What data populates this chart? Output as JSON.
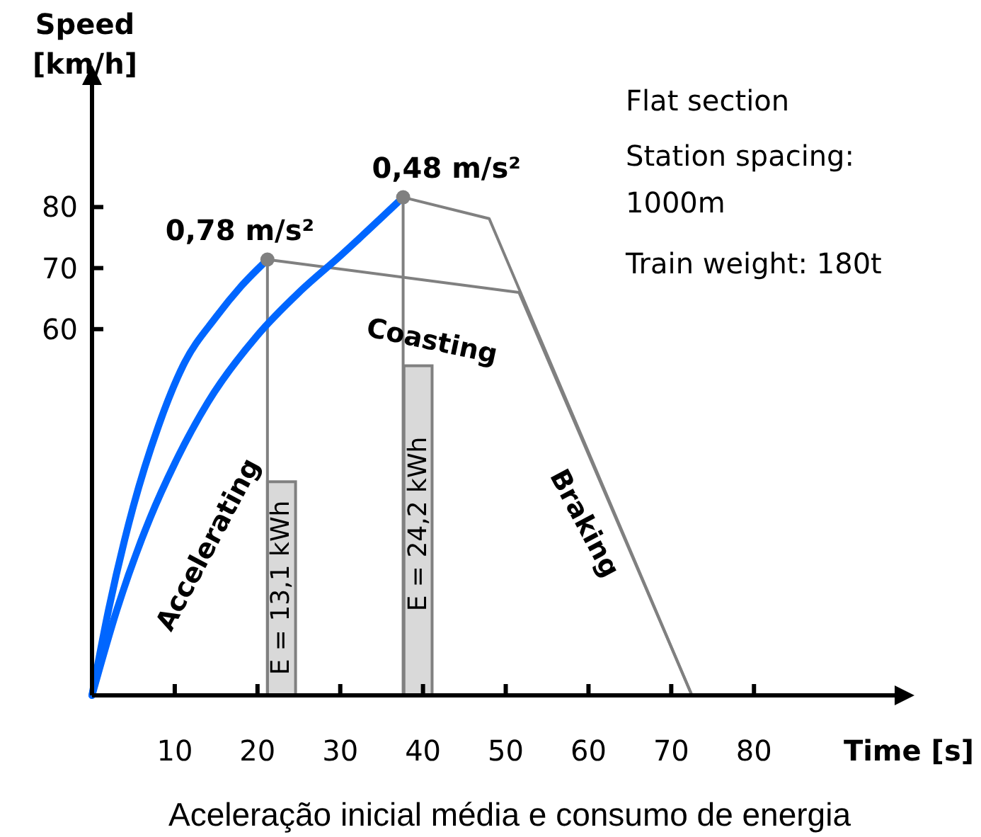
{
  "chart_data": {
    "type": "line",
    "xlabel": "Time [s]",
    "ylabel": "Speed [km/h]",
    "xlim": [
      0,
      97
    ],
    "ylim": [
      0,
      100
    ],
    "xticks": [
      10,
      20,
      30,
      40,
      50,
      60,
      70,
      80
    ],
    "yticks": [
      60,
      70,
      80
    ],
    "grid": false,
    "marker": "none",
    "series": [
      {
        "type": "bar",
        "color": "#d9d9d9",
        "x": [
          22.9
        ],
        "values": [
          35
        ]
      },
      {
        "type": "bar",
        "color": "#d9d9d9",
        "x": [
          39.4
        ],
        "values": [
          54
        ]
      },
      {
        "color": "#808080",
        "x": [
          21.2,
          21.2
        ],
        "values": [
          71.4,
          0
        ]
      },
      {
        "color": "#808080",
        "x": [
          37.6,
          37.6
        ],
        "values": [
          81.6,
          0
        ]
      },
      {
        "color": "#808080",
        "x": [
          21.2,
          51.6,
          72.5
        ],
        "values": [
          71.4,
          66,
          0
        ]
      },
      {
        "color": "#808080",
        "x": [
          37.6,
          48,
          72.5
        ],
        "values": [
          81.6,
          78.1,
          0
        ]
      },
      {
        "color": "#0066ff",
        "x": [
          0,
          2,
          5,
          8,
          11,
          15,
          18,
          21.2
        ],
        "values": [
          0,
          14,
          31,
          44,
          54,
          62,
          67,
          71.4
        ]
      },
      {
        "color": "#0066ff",
        "x": [
          0,
          3,
          7,
          10,
          14,
          20,
          25,
          30,
          37.6
        ],
        "values": [
          0,
          14,
          29,
          38,
          48,
          59,
          66,
          72,
          81.6
        ]
      },
      {
        "type": "scatter",
        "color": "#808080",
        "marker": "circle",
        "x": [
          21.2,
          37.6
        ],
        "values": [
          71.4,
          81.6
        ]
      }
    ],
    "annotations": [
      {
        "text": "0,78 m/s²",
        "x": 21.2,
        "y": 71.4
      },
      {
        "text": "0,48 m/s²",
        "x": 37.6,
        "y": 81.6
      },
      "Accelerating",
      "Coasting",
      "Braking",
      "E = 13,1 kWh",
      "E = 24,2 kWh",
      "Flat section",
      "Station spacing:",
      "1000m",
      "Train weight: 180t",
      "Aceleração inicial média e consumo de energia"
    ]
  }
}
